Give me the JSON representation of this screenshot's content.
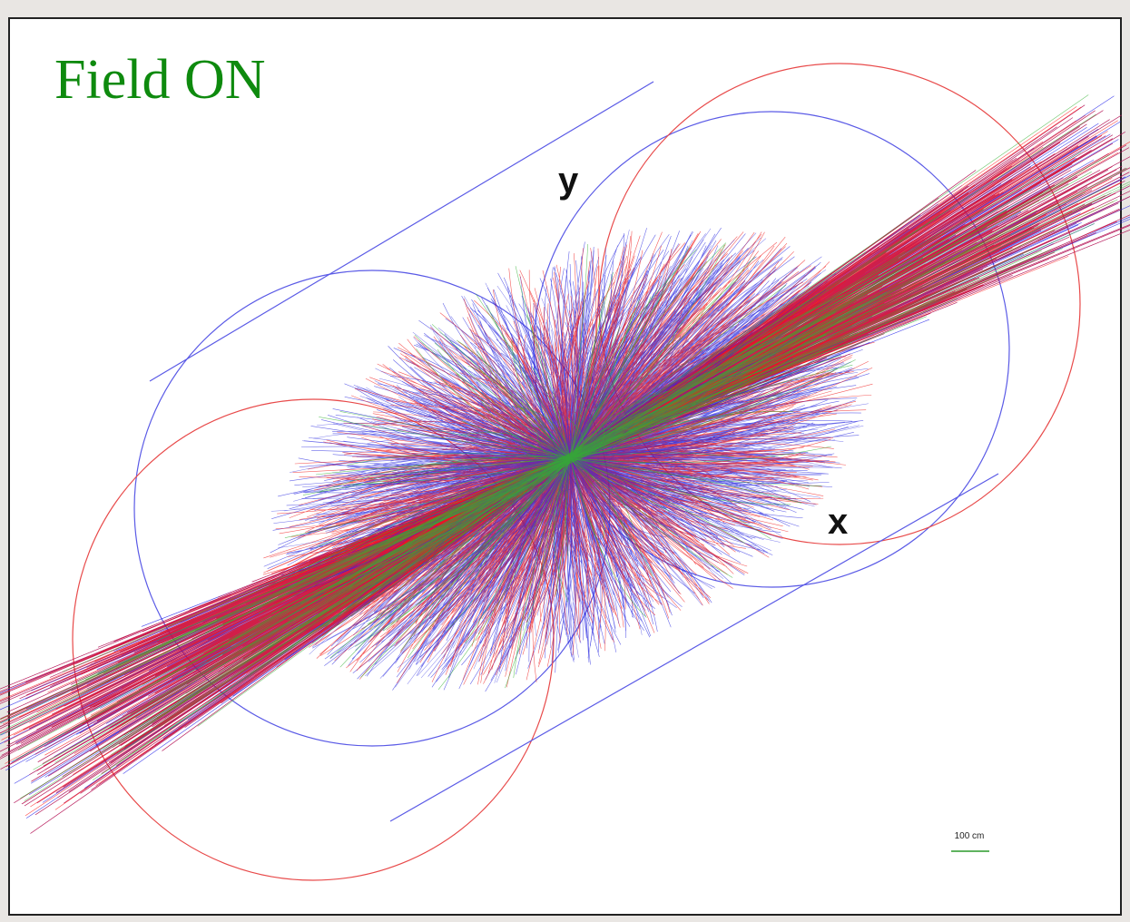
{
  "title": "Field ON",
  "axes": {
    "y": "y",
    "x": "x"
  },
  "scale": {
    "label": "100 cm"
  }
}
